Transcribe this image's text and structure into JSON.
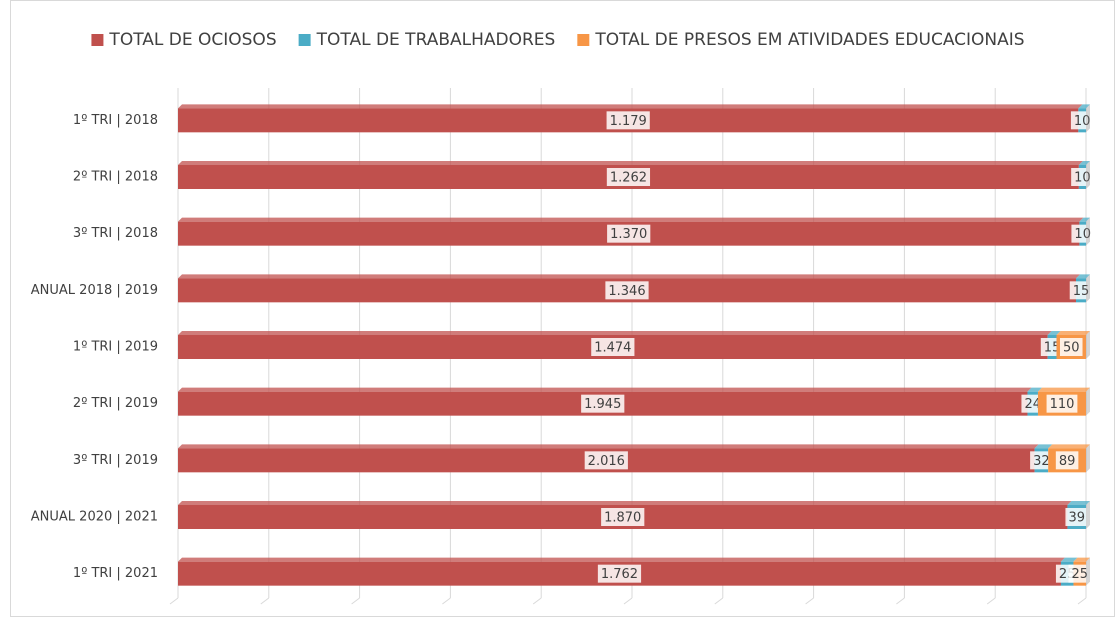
{
  "chart_data": {
    "type": "bar",
    "orientation": "horizontal",
    "stacking": "percent",
    "categories": [
      "1º TRI | 2018",
      "2º TRI | 2018",
      "3º TRI | 2018",
      "ANUAL 2018 | 2019",
      "1º TRI | 2019",
      "2º TRI | 2019",
      "3º TRI | 2019",
      "ANUAL 2020 | 2021",
      "1º TRI | 2021"
    ],
    "series": [
      {
        "name": "TOTAL DE OCIOSOS",
        "color": "#c0504d",
        "values": [
          1179,
          1262,
          1370,
          1346,
          1474,
          1945,
          2016,
          1870,
          1762
        ],
        "value_labels": [
          "1.179",
          "1.262",
          "1.370",
          "1.346",
          "1.474",
          "1.945",
          "2.016",
          "1.870",
          "1.762"
        ]
      },
      {
        "name": "TOTAL DE TRABALHADORES",
        "color": "#4bacc6",
        "values": [
          10,
          10,
          10,
          15,
          15,
          24,
          32,
          39,
          25
        ]
      },
      {
        "name": "TOTAL DE PRESOS EM ATIVIDADES EDUCACIONAIS",
        "color": "#f79646",
        "values": [
          null,
          null,
          null,
          null,
          50,
          110,
          89,
          null,
          25
        ]
      }
    ],
    "xlim": [
      0,
      100
    ],
    "xticks": [
      0,
      10,
      20,
      30,
      40,
      50,
      60,
      70,
      80,
      90,
      100
    ],
    "grid": true,
    "legend": "top"
  }
}
